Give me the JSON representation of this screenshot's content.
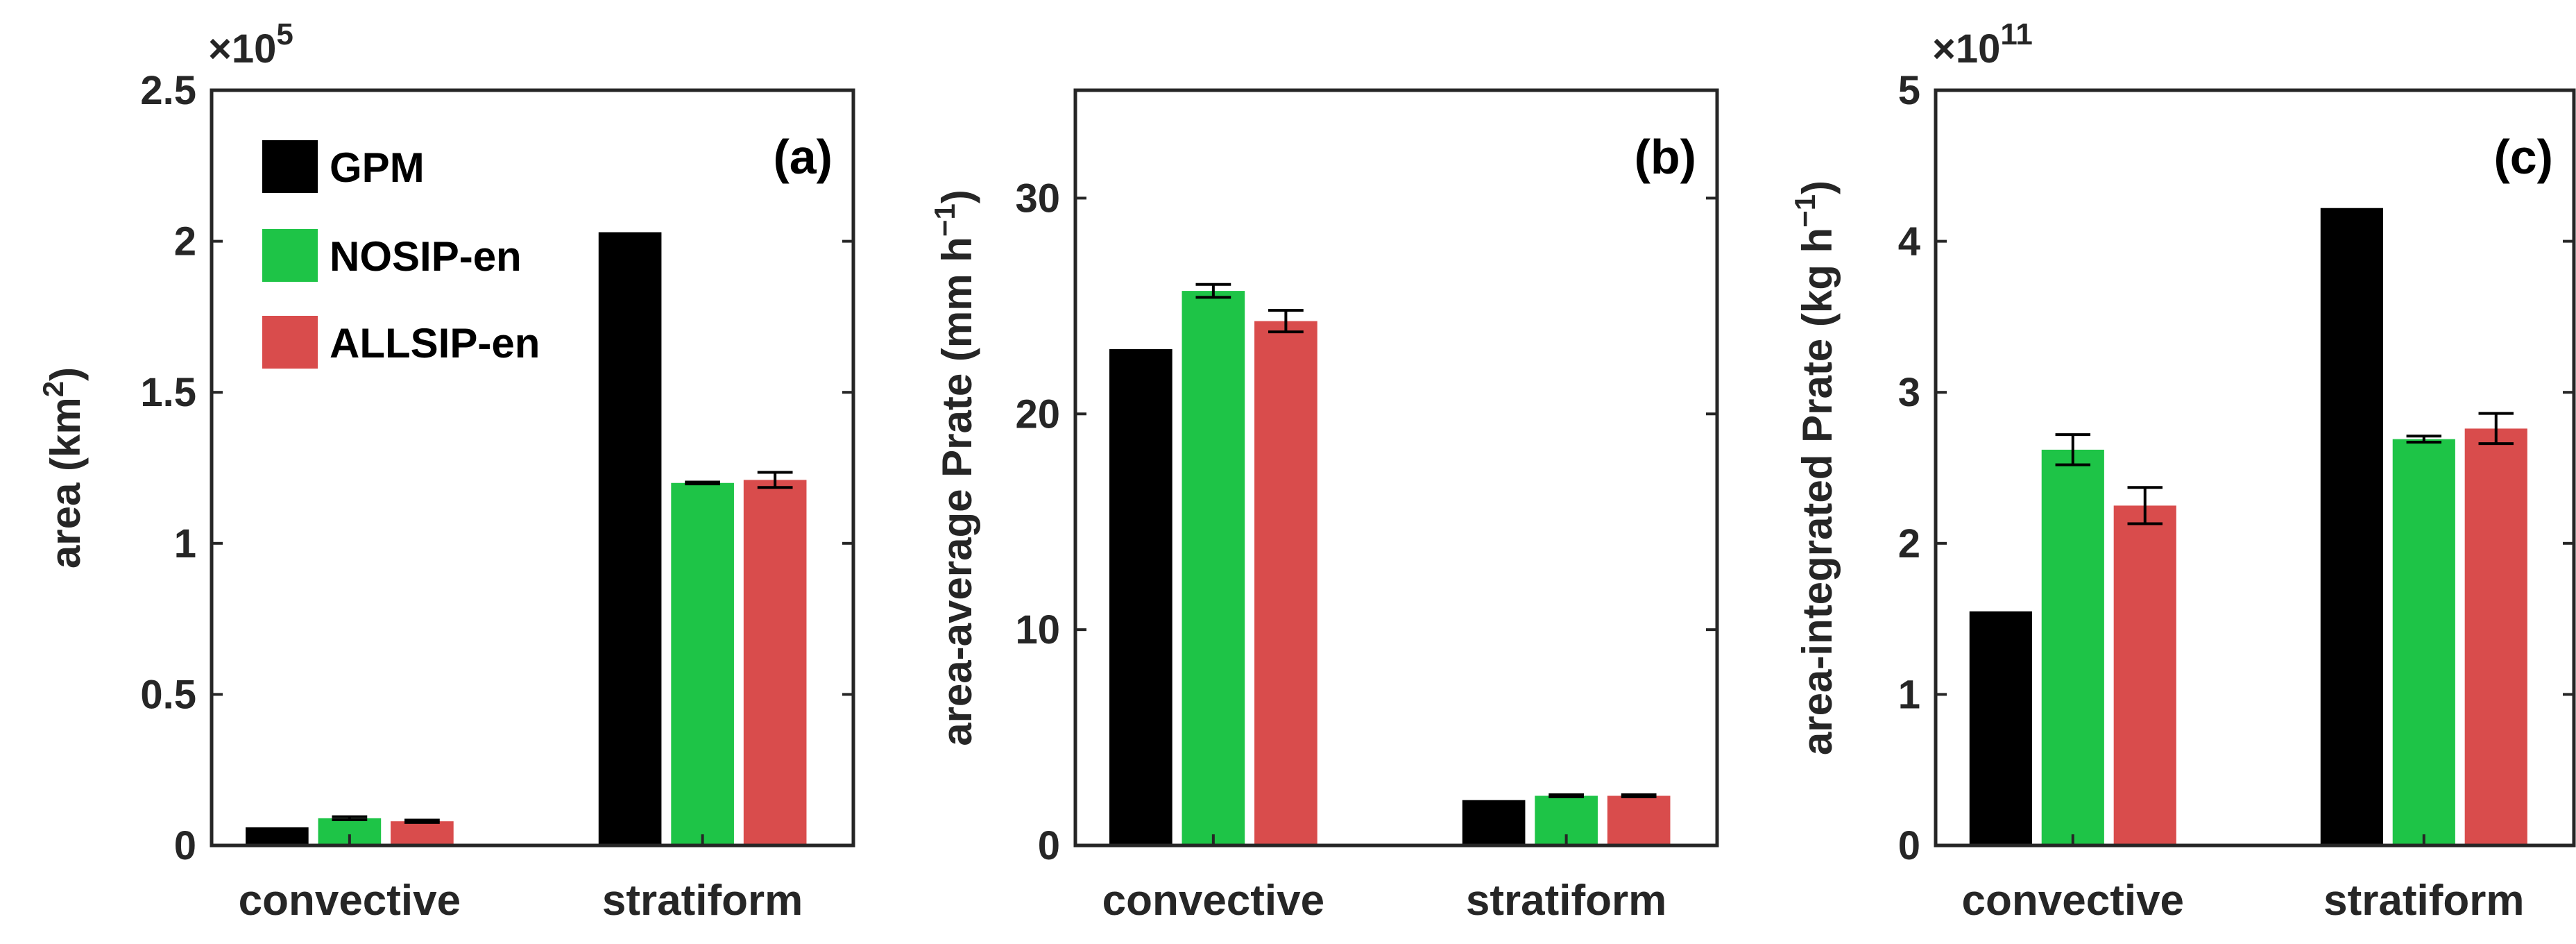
{
  "colors": {
    "GPM": "#000000",
    "NOSIP-en": "#1ec447",
    "ALLSIP-en": "#d94c4c"
  },
  "chart_data": [
    {
      "type": "bar",
      "panel": "(a)",
      "ylabel_main": "area (km",
      "ylabel_sup": "2",
      "ylabel_tail": ")",
      "multiplier_base": "×10",
      "multiplier_exp": "5",
      "ylim": [
        0,
        2.5
      ],
      "yticks": [
        "0",
        "0.5",
        "1",
        "1.5",
        "2",
        "2.5"
      ],
      "categories": [
        "convective",
        "stratiform"
      ],
      "legend": [
        "GPM",
        "NOSIP-en",
        "ALLSIP-en"
      ],
      "series": [
        {
          "name": "GPM",
          "values": [
            0.06,
            2.03
          ],
          "errors": [
            0,
            0
          ]
        },
        {
          "name": "NOSIP-en",
          "values": [
            0.09,
            1.2
          ],
          "errors": [
            0.005,
            0.003
          ]
        },
        {
          "name": "ALLSIP-en",
          "values": [
            0.08,
            1.21
          ],
          "errors": [
            0.004,
            0.025
          ]
        }
      ]
    },
    {
      "type": "bar",
      "panel": "(b)",
      "ylabel_main": "area-average Prate (mm h",
      "ylabel_sup": "−1",
      "ylabel_tail": ")",
      "ylim": [
        0,
        35
      ],
      "yticks": [
        "0",
        "10",
        "20",
        "30"
      ],
      "categories": [
        "convective",
        "stratiform"
      ],
      "series": [
        {
          "name": "GPM",
          "values": [
            23.0,
            2.1
          ],
          "errors": [
            0,
            0
          ]
        },
        {
          "name": "NOSIP-en",
          "values": [
            25.7,
            2.3
          ],
          "errors": [
            0.3,
            0.05
          ]
        },
        {
          "name": "ALLSIP-en",
          "values": [
            24.3,
            2.3
          ],
          "errors": [
            0.5,
            0.05
          ]
        }
      ]
    },
    {
      "type": "bar",
      "panel": "(c)",
      "ylabel_main": "area-integrated Prate (kg h",
      "ylabel_sup": "−1",
      "ylabel_tail": ")",
      "multiplier_base": "×10",
      "multiplier_exp": "11",
      "ylim": [
        0,
        5
      ],
      "yticks": [
        "0",
        "1",
        "2",
        "3",
        "4",
        "5"
      ],
      "categories": [
        "convective",
        "stratiform"
      ],
      "series": [
        {
          "name": "GPM",
          "values": [
            1.55,
            4.22
          ],
          "errors": [
            0,
            0
          ]
        },
        {
          "name": "NOSIP-en",
          "values": [
            2.62,
            2.69
          ],
          "errors": [
            0.1,
            0.02
          ]
        },
        {
          "name": "ALLSIP-en",
          "values": [
            2.25,
            2.76
          ],
          "errors": [
            0.12,
            0.1
          ]
        }
      ]
    }
  ]
}
